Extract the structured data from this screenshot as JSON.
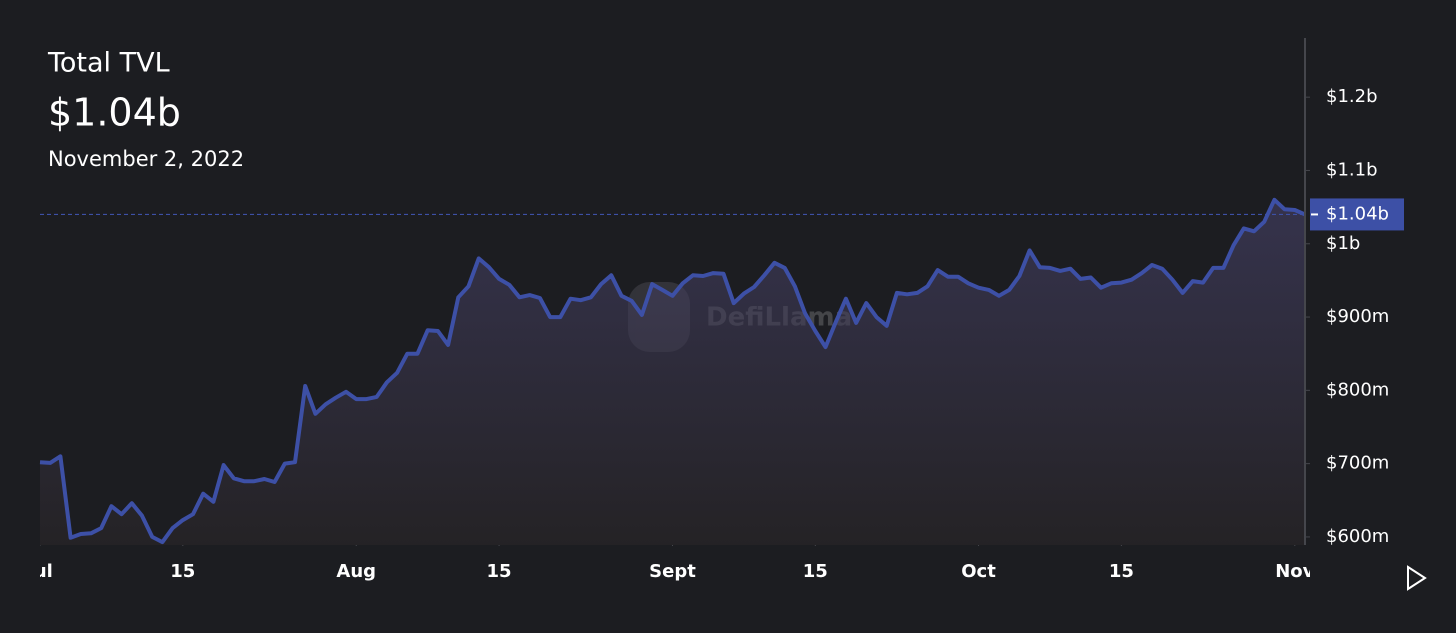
{
  "chart_data": {
    "type": "area",
    "title": "Total TVL",
    "headline_value": "$1.04b",
    "date": "November 2, 2022",
    "watermark": "DefiLlama",
    "color": "#3d50a6",
    "values": [
      702,
      701,
      710,
      599,
      604,
      605,
      612,
      642,
      631,
      646,
      629,
      600,
      593,
      612,
      623,
      631,
      659,
      648,
      698,
      680,
      676,
      676,
      679,
      675,
      700,
      702,
      806,
      768,
      781,
      790,
      798,
      788,
      788,
      791,
      811,
      824,
      850,
      850,
      882,
      881,
      862,
      927,
      942,
      980,
      968,
      952,
      944,
      927,
      930,
      926,
      900,
      900,
      925,
      923,
      927,
      945,
      957,
      929,
      922,
      903,
      945,
      937,
      929,
      946,
      957,
      956,
      960,
      959,
      919,
      932,
      941,
      957,
      974,
      967,
      942,
      905,
      881,
      859,
      893,
      925,
      892,
      919,
      900,
      888,
      933,
      931,
      933,
      942,
      964,
      955,
      955,
      946,
      940,
      937,
      929,
      937,
      956,
      991,
      968,
      967,
      963,
      966,
      952,
      954,
      940,
      946,
      947,
      951,
      960,
      971,
      966,
      951,
      933,
      949,
      947,
      967,
      967,
      998,
      1021,
      1017,
      1030,
      1060,
      1047,
      1046,
      1040
    ],
    "last_label": "$1.04b",
    "xlim": [
      0,
      124
    ],
    "xticks": [
      {
        "value": 0,
        "label": "Jul"
      },
      {
        "value": 14,
        "label": "15"
      },
      {
        "value": 31,
        "label": "Aug"
      },
      {
        "value": 45,
        "label": "15"
      },
      {
        "value": 62,
        "label": "Sept"
      },
      {
        "value": 76,
        "label": "15"
      },
      {
        "value": 92,
        "label": "Oct"
      },
      {
        "value": 106,
        "label": "15"
      },
      {
        "value": 123,
        "label": "Nov"
      }
    ],
    "ylim": [
      589,
      1278
    ],
    "yticks": [
      {
        "value": 600,
        "label": "$600m"
      },
      {
        "value": 700,
        "label": "$700m"
      },
      {
        "value": 800,
        "label": "$800m"
      },
      {
        "value": 900,
        "label": "$900m"
      },
      {
        "value": 1000,
        "label": "$1b"
      },
      {
        "value": 1100,
        "label": "$1.1b"
      },
      {
        "value": 1200,
        "label": "$1.2b"
      }
    ]
  }
}
